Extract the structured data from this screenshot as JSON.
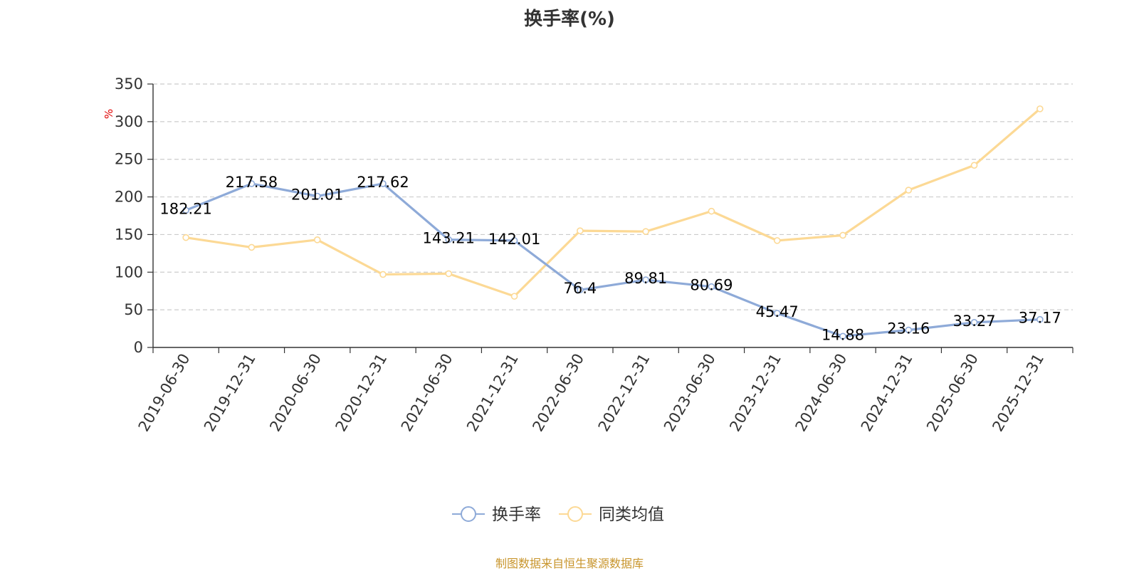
{
  "chart_data": {
    "type": "line",
    "title": "换手率(%)",
    "ylabel": "%",
    "ylim": [
      0,
      350
    ],
    "yticks": [
      0,
      50,
      100,
      150,
      200,
      250,
      300,
      350
    ],
    "grid": true,
    "legend_position": "bottom",
    "categories": [
      "2019-06-30",
      "2019-12-31",
      "2020-06-30",
      "2020-12-31",
      "2021-06-30",
      "2021-12-31",
      "2022-06-30",
      "2022-12-31",
      "2023-06-30",
      "2023-12-31",
      "2024-06-30",
      "2024-12-31",
      "2025-06-30",
      "2025-12-31"
    ],
    "series": [
      {
        "name": "换手率",
        "color": "#8eaad8",
        "values": [
          182.21,
          217.58,
          201.01,
          217.62,
          143.21,
          142.01,
          76.4,
          89.81,
          80.69,
          45.47,
          14.88,
          23.16,
          33.27,
          37.17
        ],
        "show_labels": true
      },
      {
        "name": "同类均值",
        "color": "#fcd995",
        "values": [
          146,
          133,
          143,
          97,
          98,
          68,
          155,
          154,
          181,
          142,
          149,
          209,
          242,
          317
        ],
        "show_labels": false
      }
    ]
  },
  "footer": {
    "source": "制图数据来自恒生聚源数据库"
  }
}
